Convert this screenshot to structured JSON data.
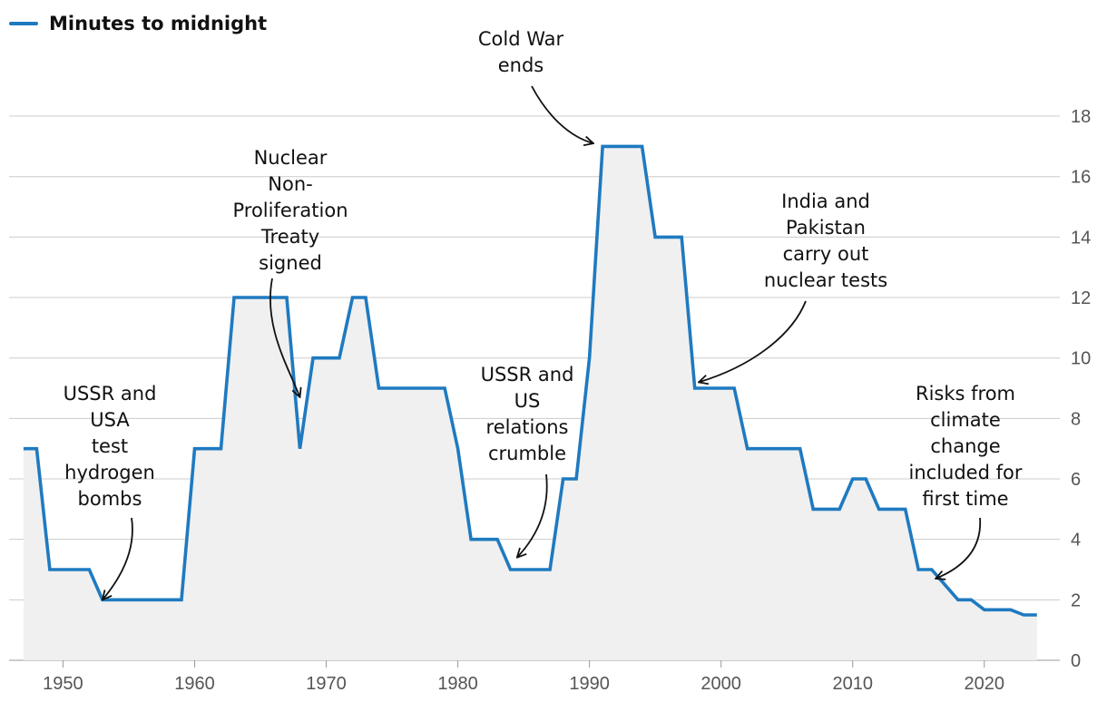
{
  "legend": {
    "label": "Minutes to midnight",
    "color": "#1f7ac0"
  },
  "chart_data": {
    "type": "line",
    "title": "",
    "xlabel": "",
    "ylabel": "",
    "xlim": [
      1946,
      2025
    ],
    "ylim": [
      0,
      18
    ],
    "x_ticks": [
      1950,
      1960,
      1970,
      1980,
      1990,
      2000,
      2010,
      2020
    ],
    "y_ticks": [
      0,
      2,
      4,
      6,
      8,
      10,
      12,
      14,
      16,
      18
    ],
    "area_fill": "#f0f0f0",
    "grid_color": "#cccccc",
    "series": [
      {
        "name": "Minutes to midnight",
        "color": "#1f7ac0",
        "x": [
          1947,
          1948,
          1949,
          1952,
          1953,
          1959,
          1960,
          1962,
          1963,
          1967,
          1968,
          1969,
          1971,
          1972,
          1973,
          1974,
          1979,
          1980,
          1981,
          1983,
          1984,
          1987,
          1988,
          1989,
          1990,
          1991,
          1994,
          1995,
          1997,
          1998,
          2001,
          2002,
          2006,
          2007,
          2009,
          2010,
          2011,
          2012,
          2014,
          2015,
          2016,
          2017,
          2018,
          2019,
          2020,
          2022,
          2023,
          2024
        ],
        "y": [
          7,
          7,
          3,
          3,
          2,
          2,
          7,
          7,
          12,
          12,
          7,
          10,
          10,
          12,
          12,
          9,
          9,
          7,
          4,
          4,
          3,
          3,
          6,
          6,
          10,
          17,
          17,
          14,
          14,
          9,
          9,
          7,
          7,
          5,
          5,
          6,
          6,
          5,
          5,
          3,
          3,
          2.5,
          2,
          2,
          1.67,
          1.67,
          1.5,
          1.5
        ]
      }
    ],
    "annotations": [
      {
        "lines": [
          "USSR and",
          "USA",
          "test",
          "hydrogen",
          "bombs"
        ],
        "target": [
          1953,
          2
        ]
      },
      {
        "lines": [
          "Nuclear",
          "Non-",
          "Proliferation",
          "Treaty",
          "signed"
        ],
        "target": [
          1968,
          8.7
        ]
      },
      {
        "lines": [
          "USSR and",
          "US",
          "relations",
          "crumble"
        ],
        "target": [
          1984.5,
          3.4
        ]
      },
      {
        "lines": [
          "Cold War",
          "ends"
        ],
        "target": [
          1990.3,
          17.1
        ]
      },
      {
        "lines": [
          "India and",
          "Pakistan",
          "carry out",
          "nuclear tests"
        ],
        "target": [
          1998.3,
          9.2
        ]
      },
      {
        "lines": [
          "Risks from",
          "climate",
          "change",
          "included for",
          "first time"
        ],
        "target": [
          2016.3,
          2.7
        ]
      }
    ]
  }
}
